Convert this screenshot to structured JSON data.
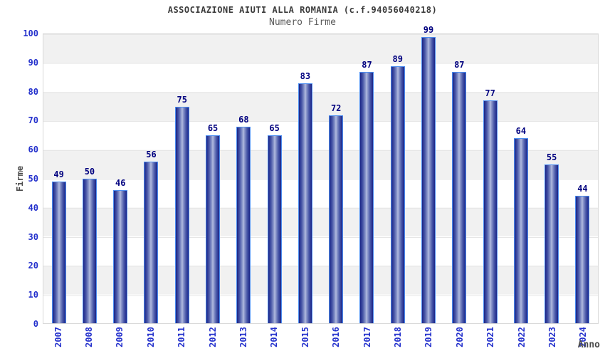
{
  "header": {
    "title": "ASSOCIAZIONE AIUTI ALLA ROMANIA (c.f.94056040218)",
    "subtitle": "Numero Firme"
  },
  "chart_data": {
    "type": "bar",
    "title": "ASSOCIAZIONE AIUTI ALLA ROMANIA (c.f.94056040218)",
    "subtitle": "Numero Firme",
    "categories": [
      "2007",
      "2008",
      "2009",
      "2010",
      "2011",
      "2012",
      "2013",
      "2014",
      "2015",
      "2016",
      "2017",
      "2018",
      "2019",
      "2020",
      "2021",
      "2022",
      "2023",
      "2024"
    ],
    "values": [
      49,
      50,
      46,
      56,
      75,
      65,
      68,
      65,
      83,
      72,
      87,
      89,
      99,
      87,
      77,
      64,
      55,
      44
    ],
    "xlabel": "Anno",
    "ylabel": "Firme",
    "ylim": [
      0,
      100
    ],
    "y_ticks": [
      0,
      10,
      20,
      30,
      40,
      50,
      60,
      70,
      80,
      90,
      100
    ],
    "grid": "horizontal-bands-alternating",
    "legend_position": "none",
    "value_labels_shown": true
  },
  "colors": {
    "bar_edge": "#1b2383",
    "bar_center": "#b3bde0",
    "bar_border": "#4d8ef0",
    "value_label": "#00007f",
    "tick_label": "#2330cc",
    "axis_title": "#4a4a4a",
    "title_text": "#3a3a3a",
    "subtitle_text": "#5a5a5a",
    "band_gray": "#f1f1f1",
    "band_white": "#ffffff",
    "plot_border": "#d8d8d8"
  }
}
